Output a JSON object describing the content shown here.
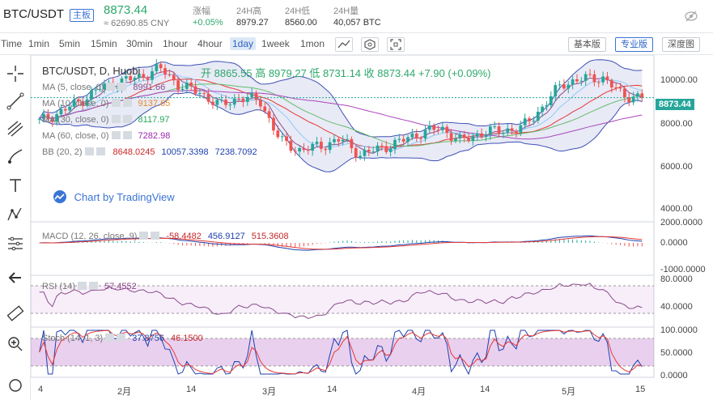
{
  "header": {
    "pair": "BTC/USDT",
    "badge": "主板",
    "price": "8873.44",
    "cny": "≈ 62690.85 CNY",
    "stats": [
      {
        "label": "涨幅",
        "value": "+0.05%"
      },
      {
        "label": "24H高",
        "value": "8979.27"
      },
      {
        "label": "24H低",
        "value": "8560.00"
      },
      {
        "label": "24H量",
        "value": "40,057 BTC"
      }
    ]
  },
  "toolbar": {
    "intervals": [
      "Time",
      "1min",
      "5min",
      "15min",
      "30min",
      "1hour",
      "4hour",
      "1day",
      "1week",
      "1mon"
    ],
    "active": "1day",
    "modes": [
      "基本版",
      "专业版",
      "深度图"
    ],
    "active_mode": "专业版"
  },
  "legend": {
    "title": "BTC/USDT, D, Huobi",
    "ohlc": "开 8865.55  高 8979.27  低 8731.14  收 8873.44  +7.90 (+0.09%)",
    "ma5": {
      "label": "MA (5, close, 0)",
      "value": "8991.66"
    },
    "ma10": {
      "label": "MA (10, close, 0)",
      "value": "9137.65"
    },
    "ma30": {
      "label": "MA (30, close, 0)",
      "value": "8117.97"
    },
    "ma60": {
      "label": "MA (60, close, 0)",
      "value": "7282.98"
    },
    "bb": {
      "label": "BB (20, 2)",
      "v1": "8648.0245",
      "v2": "10057.3398",
      "v3": "7238.7092"
    },
    "watermark": "Chart by TradingView",
    "macd": {
      "label": "MACD (12, 26, close, 9)",
      "v1": "-58.4482",
      "v2": "456.9127",
      "v3": "515.3608"
    },
    "rsi": {
      "label": "RSI (14)",
      "v1": "57.4552"
    },
    "stoch": {
      "label": "Stoch (14, 1, 3)",
      "v1": "37.8756",
      "v2": "46.1500"
    }
  },
  "axis": {
    "price_ticks": [
      "10000.00",
      "8000.00",
      "6000.00",
      "4000.00"
    ],
    "last_price": "8873.44",
    "macd_ticks": [
      "2000.0000",
      "0.0000",
      "-1000.0000"
    ],
    "rsi_ticks": [
      "80.0000",
      "40.0000"
    ],
    "stoch_ticks": [
      "100.0000",
      "50.0000",
      "0.0000"
    ],
    "x_ticks": [
      "4",
      "2月",
      "14",
      "3月",
      "14",
      "4月",
      "14",
      "5月",
      "15"
    ]
  },
  "colors": {
    "up": "#26a69a",
    "down": "#ef5350",
    "accent": "#3b74d6",
    "price_green": "#2ea86b"
  },
  "chart_data": {
    "type": "candlestick",
    "price_range": [
      3500,
      10500
    ],
    "x_ticks": [
      "4",
      "2月",
      "14",
      "3月",
      "14",
      "4月",
      "14",
      "5月",
      "15"
    ],
    "series_names": [
      "MA (5, close, 0)",
      "MA (10, close, 0)",
      "MA (30, close, 0)",
      "MA (60, close, 0)",
      "BB (20, 2)"
    ],
    "close_approx": [
      7800,
      8200,
      8700,
      9300,
      9600,
      9800,
      10200,
      9400,
      9100,
      8500,
      8900,
      8700,
      6900,
      6500,
      6700,
      7000,
      6300,
      6600,
      6900,
      7300,
      7500,
      6900,
      7300,
      7400,
      7500,
      8400,
      9500,
      9700,
      9800,
      9000,
      8873
    ]
  }
}
